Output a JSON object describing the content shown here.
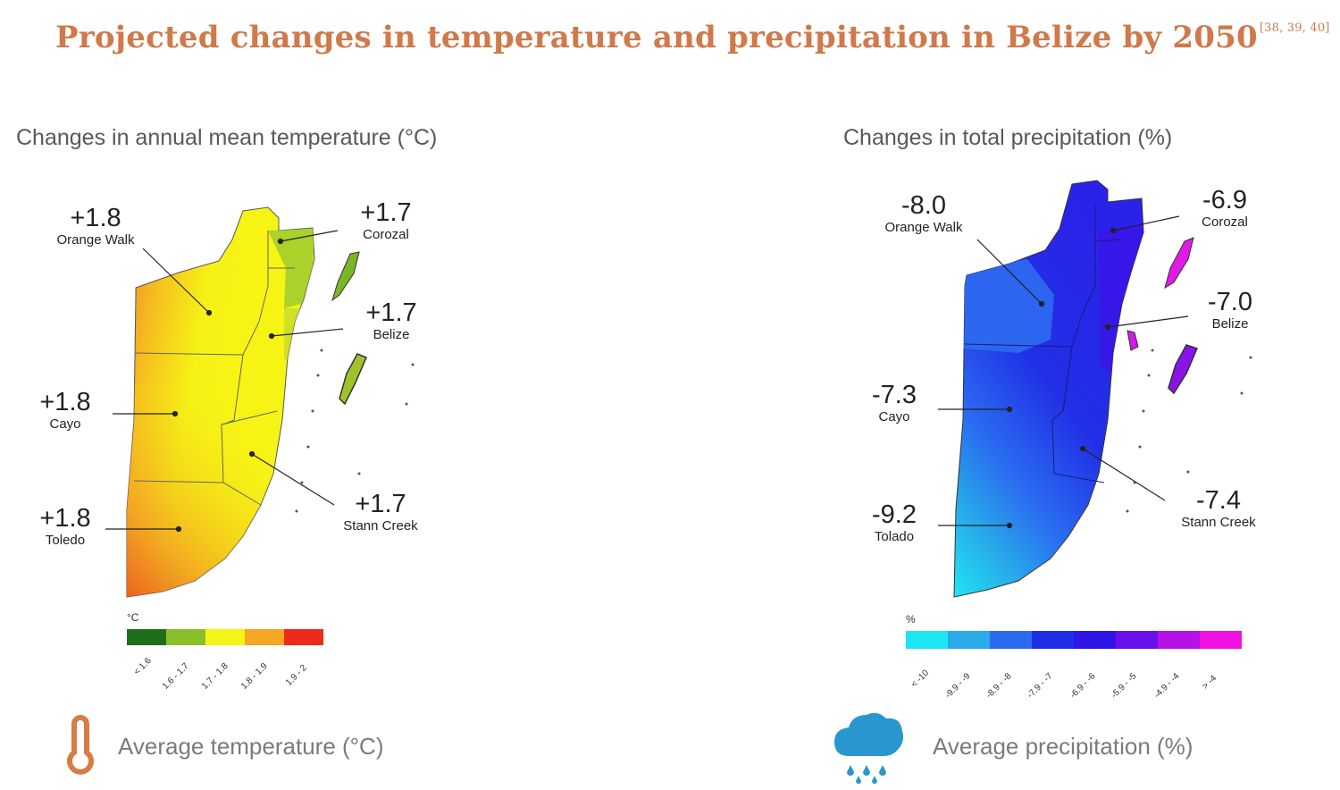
{
  "title": "Projected changes in temperature and precipitation in Belize by 2050",
  "title_refs": "[38, 39, 40]",
  "temperature_map": {
    "subtitle": "Changes in annual mean temperature (°C)",
    "districts": {
      "orange_walk": {
        "value": "+1.8",
        "name": "Orange Walk"
      },
      "corozal": {
        "value": "+1.7",
        "name": "Corozal"
      },
      "belize": {
        "value": "+1.7",
        "name": "Belize"
      },
      "cayo": {
        "value": "+1.8",
        "name": "Cayo"
      },
      "stann_creek": {
        "value": "+1.7",
        "name": "Stann Creek"
      },
      "toledo": {
        "value": "+1.8",
        "name": "Toledo"
      }
    },
    "legend": {
      "unit": "°C",
      "classes": [
        {
          "label": "< 1.6",
          "color": "#1f6e1a"
        },
        {
          "label": "1.6 - 1.7",
          "color": "#8bbf29"
        },
        {
          "label": "1.7 - 1.8",
          "color": "#f4f416"
        },
        {
          "label": "1.8 - 1.9",
          "color": "#f5a623"
        },
        {
          "label": "1.9 - 2",
          "color": "#ee2b1a"
        }
      ]
    }
  },
  "precipitation_map": {
    "subtitle": "Changes in total precipitation (%)",
    "districts": {
      "orange_walk": {
        "value": "-8.0",
        "name": "Orange Walk"
      },
      "corozal": {
        "value": "-6.9",
        "name": "Corozal"
      },
      "belize": {
        "value": "-7.0",
        "name": "Belize"
      },
      "cayo": {
        "value": "-7.3",
        "name": "Cayo"
      },
      "stann_creek": {
        "value": "-7.4",
        "name": "Stann Creek"
      },
      "toledo": {
        "value": "-9.2",
        "name": "Tolado"
      }
    },
    "legend": {
      "unit": "%",
      "classes": [
        {
          "label": "< -10",
          "color": "#1ee6f0"
        },
        {
          "label": "-9.9 - -9",
          "color": "#2aaae8"
        },
        {
          "label": "-8.9 - -8",
          "color": "#2a6cf0"
        },
        {
          "label": "-7.9 - -7",
          "color": "#1f2fe6"
        },
        {
          "label": "-6.9 - -6",
          "color": "#2d16e6"
        },
        {
          "label": "-5.9 - -5",
          "color": "#6a10e8"
        },
        {
          "label": "-4.9 - -4",
          "color": "#b512e8"
        },
        {
          "label": "> -4",
          "color": "#f012e0"
        }
      ]
    }
  },
  "footer": {
    "temperature_label": "Average temperature (°C)",
    "precipitation_label": "Average precipitation (%)",
    "thermometer_color": "#d97b45",
    "cloud_color": "#2a96cf"
  }
}
